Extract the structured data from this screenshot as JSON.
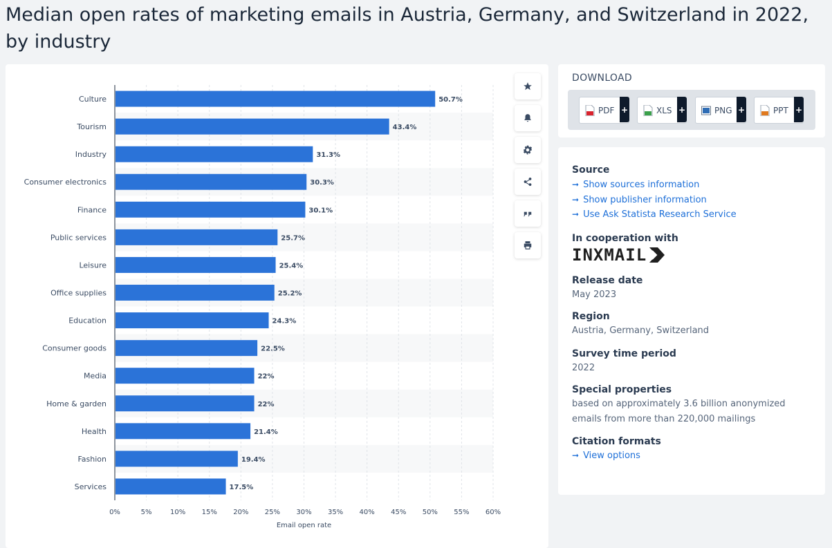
{
  "page": {
    "title": "Median open rates of marketing emails in Austria, Germany, and Switzerland in 2022, by industry"
  },
  "actions": [
    {
      "name": "favorite-button",
      "icon": "star-icon"
    },
    {
      "name": "notification-button",
      "icon": "bell-icon"
    },
    {
      "name": "settings-button",
      "icon": "gear-icon"
    },
    {
      "name": "share-button",
      "icon": "share-icon"
    },
    {
      "name": "cite-button",
      "icon": "quote-icon"
    },
    {
      "name": "print-button",
      "icon": "printer-icon"
    }
  ],
  "download": {
    "title": "DOWNLOAD",
    "buttons": [
      {
        "label": "PDF",
        "icon": "pdf-file-icon",
        "color": "#d9232d"
      },
      {
        "label": "XLS",
        "icon": "xls-file-icon",
        "color": "#3aa04a"
      },
      {
        "label": "PNG",
        "icon": "png-file-icon",
        "color": "#2f6db5"
      },
      {
        "label": "PPT",
        "icon": "ppt-file-icon",
        "color": "#e07a1f"
      }
    ],
    "plus": "+"
  },
  "info": {
    "source_heading": "Source",
    "source_links": [
      "Show sources information",
      "Show publisher information",
      "Use Ask Statista Research Service"
    ],
    "cooperation_heading": "In cooperation with",
    "cooperation_logo_text": "INXMAIL",
    "release_heading": "Release date",
    "release_value": "May 2023",
    "region_heading": "Region",
    "region_value": "Austria, Germany, Switzerland",
    "survey_heading": "Survey time period",
    "survey_value": "2022",
    "special_heading": "Special properties",
    "special_value": "based on approximately 3.6 billion anonymized emails from more than 220,000 mailings",
    "citation_heading": "Citation formats",
    "citation_link": "View options"
  },
  "colors": {
    "bar": "#2b73d8",
    "link": "#1d6fd8",
    "accent_dark": "#0e1a2b"
  },
  "chart_data": {
    "type": "bar",
    "orientation": "horizontal",
    "categories": [
      "Culture",
      "Tourism",
      "Industry",
      "Consumer electronics",
      "Finance",
      "Public services",
      "Leisure",
      "Office supplies",
      "Education",
      "Consumer goods",
      "Media",
      "Home & garden",
      "Health",
      "Fashion",
      "Services"
    ],
    "values": [
      50.7,
      43.4,
      31.3,
      30.3,
      30.1,
      25.7,
      25.4,
      25.2,
      24.3,
      22.5,
      22,
      22,
      21.4,
      19.4,
      17.5
    ],
    "value_labels": [
      "50.7%",
      "43.4%",
      "31.3%",
      "30.3%",
      "30.1%",
      "25.7%",
      "25.4%",
      "25.2%",
      "24.3%",
      "22.5%",
      "22%",
      "22%",
      "21.4%",
      "19.4%",
      "17.5%"
    ],
    "xlabel": "Email open rate",
    "ylabel": "",
    "xlim": [
      0,
      60
    ],
    "xticks": [
      "0%",
      "5%",
      "10%",
      "15%",
      "20%",
      "25%",
      "30%",
      "35%",
      "40%",
      "45%",
      "50%",
      "55%",
      "60%"
    ],
    "grid": true
  }
}
